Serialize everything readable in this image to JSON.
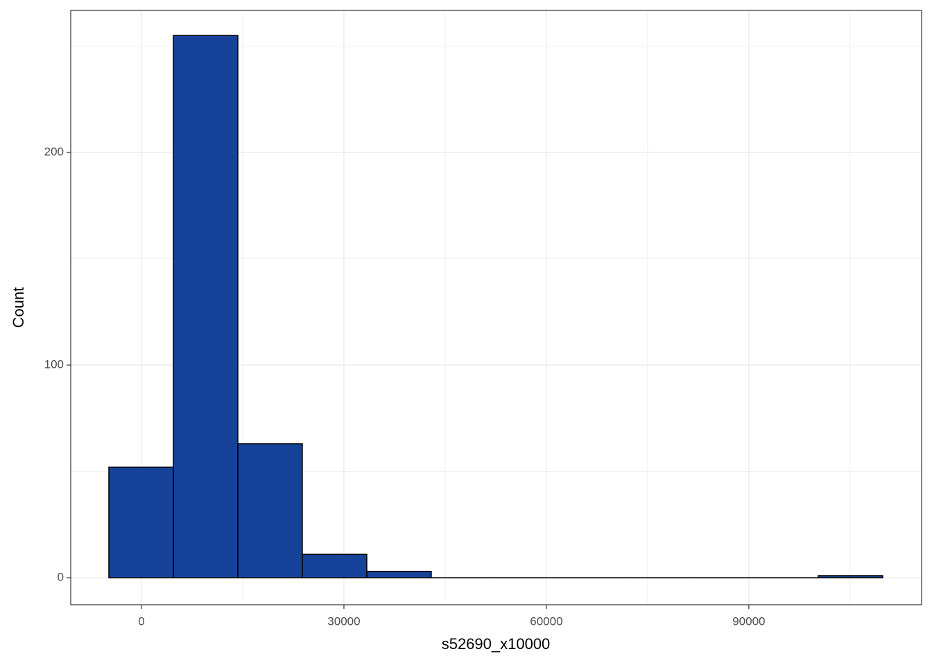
{
  "chart_data": {
    "type": "histogram",
    "x_label": "s52690_x10000",
    "y_label": "Count",
    "bins": [
      -4830,
      4725,
      14280,
      23835,
      33390,
      42945,
      52500,
      62055,
      71610,
      81165,
      90720,
      100275,
      109830
    ],
    "values": [
      52,
      255,
      63,
      11,
      3,
      0,
      0,
      0,
      0,
      0,
      0,
      1
    ],
    "color": "#17429a",
    "edgecolor": "#000000",
    "xlim": [
      -10480,
      115600
    ],
    "ylim": [
      -12.7,
      266.8
    ],
    "xticks": [
      0,
      30000,
      60000,
      90000
    ],
    "yticks": [
      0,
      100,
      200
    ],
    "grid": true
  }
}
